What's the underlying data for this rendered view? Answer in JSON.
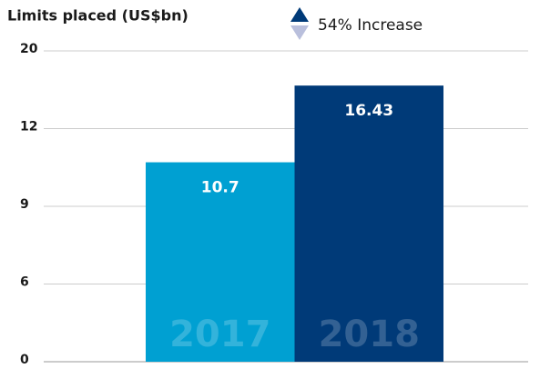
{
  "chart_data": {
    "type": "bar",
    "title": "Limits placed (US$bn)",
    "annotation": "54% Increase",
    "categories": [
      "2017",
      "2018"
    ],
    "values": [
      10.7,
      16.43
    ],
    "colors": [
      "#00a0d2",
      "#003a78"
    ],
    "ylim": [
      0,
      20
    ],
    "yticks": [
      0,
      6,
      9,
      12,
      20
    ],
    "grid": true
  }
}
